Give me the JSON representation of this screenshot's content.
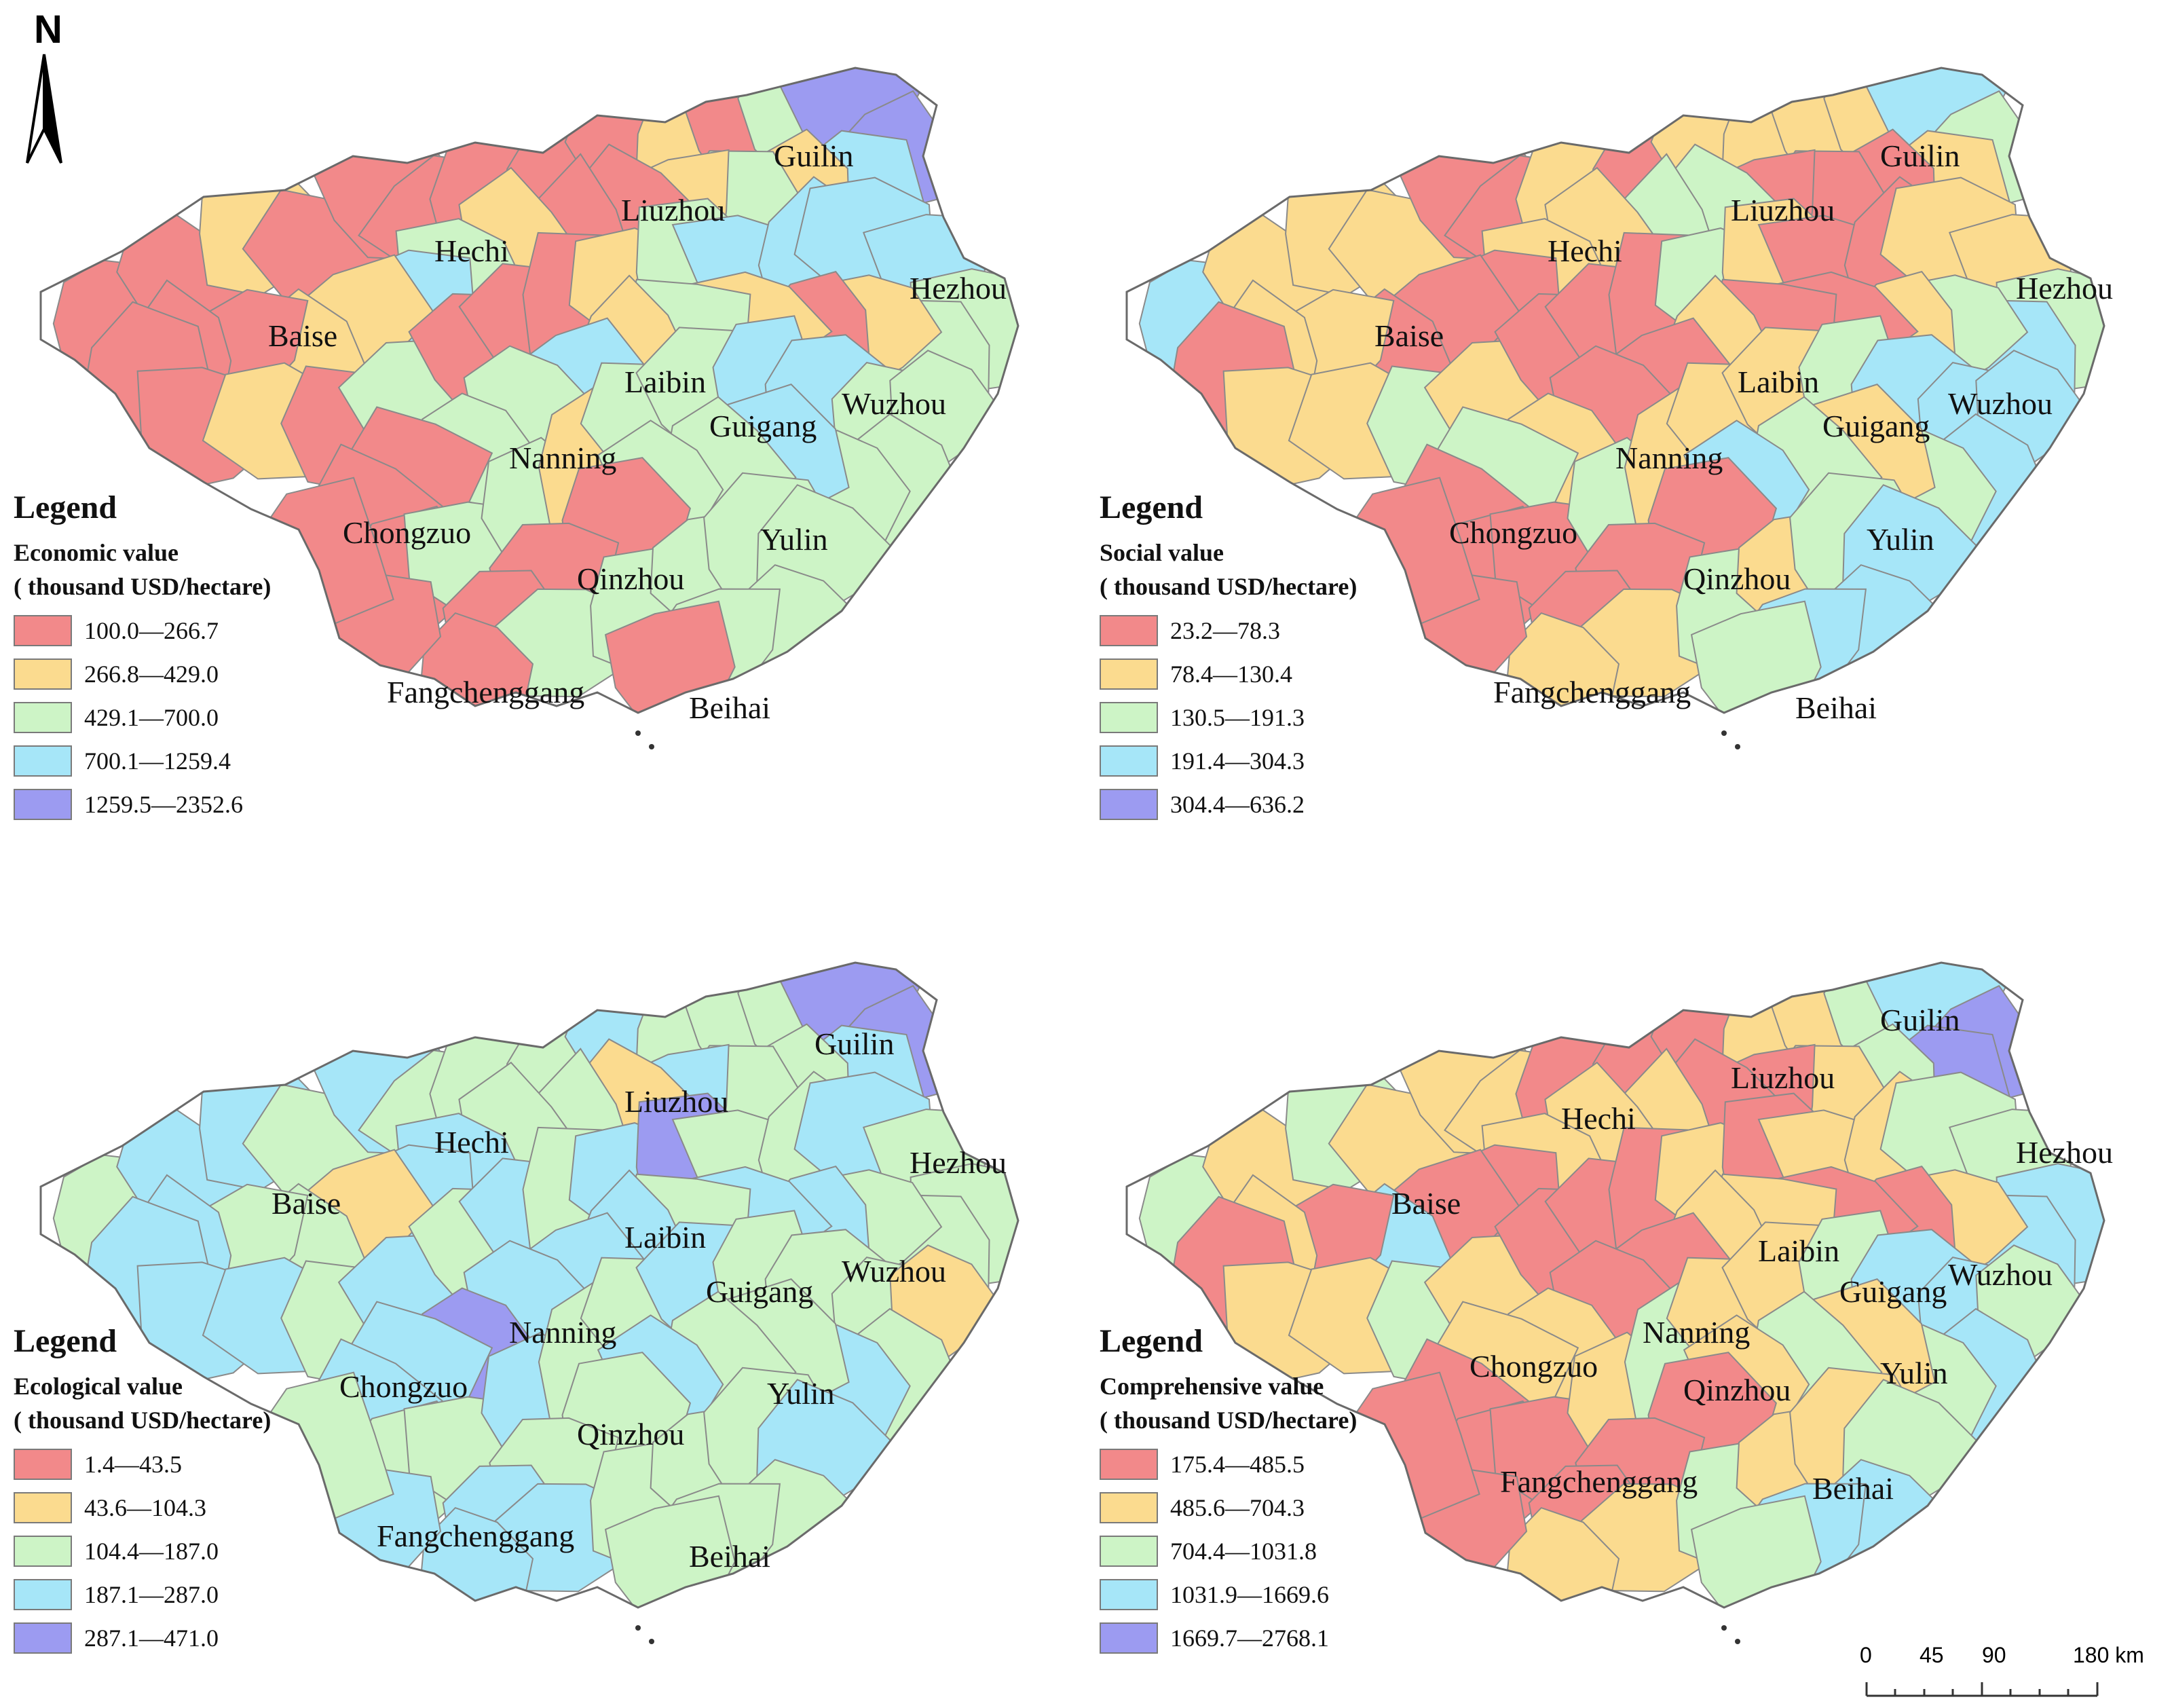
{
  "north_arrow": {
    "letter": "N",
    "icon": "north-arrow-icon"
  },
  "colors": [
    "#f2898a",
    "#fbdb8f",
    "#cdf4c6",
    "#a6e6f8",
    "#9c9bf1"
  ],
  "maps": [
    {
      "id": "economic",
      "legend": {
        "title": "Legend",
        "field_line1": "Economic value",
        "field_line2": "( thousand USD/hectare)",
        "classes": [
          "100.0—266.7",
          "266.8—429.0",
          "429.1—700.0",
          "700.1—1259.4",
          "1259.5—2352.6"
        ]
      }
    },
    {
      "id": "social",
      "legend": {
        "title": "Legend",
        "field_line1": "Social value",
        "field_line2": "( thousand USD/hectare)",
        "classes": [
          "23.2—78.3",
          "78.4—130.4",
          "130.5—191.3",
          "191.4—304.3",
          "304.4—636.2"
        ]
      }
    },
    {
      "id": "ecological",
      "legend": {
        "title": "Legend",
        "field_line1": "Ecological value",
        "field_line2": "( thousand USD/hectare)",
        "classes": [
          "1.4—43.5",
          "43.6—104.3",
          "104.4—187.0",
          "187.1—287.0",
          "287.1—471.0"
        ]
      }
    },
    {
      "id": "comprehensive",
      "legend": {
        "title": "Legend",
        "field_line1": "Comprehensive value",
        "field_line2": "( thousand USD/hectare)",
        "classes": [
          "175.4—485.5",
          "485.6—704.3",
          "704.4—1031.8",
          "1031.9—1669.6",
          "1669.7—2768.1"
        ]
      }
    }
  ],
  "cities": [
    "Guilin",
    "Liuzhou",
    "Hechi",
    "Hezhou",
    "Baise",
    "Laibin",
    "Wuzhou",
    "Guigang",
    "Nanning",
    "Chongzuo",
    "Yulin",
    "Qinzhou",
    "Fangchenggang",
    "Beihai"
  ],
  "scale_bar": {
    "ticks": [
      "0",
      "45",
      "90",
      "180 km"
    ]
  }
}
